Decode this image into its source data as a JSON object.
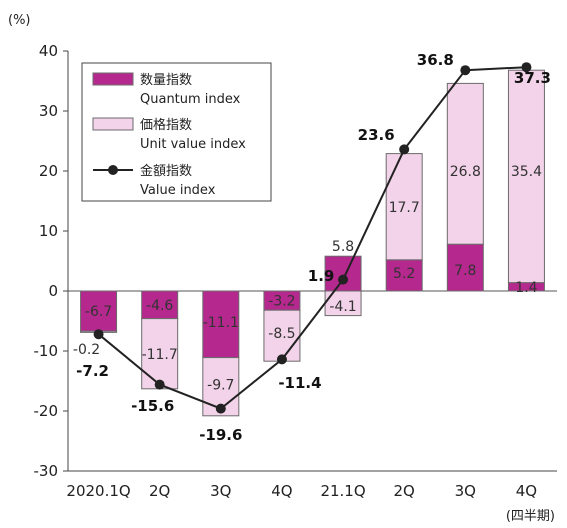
{
  "chart_data": {
    "type": "bar",
    "stacked": true,
    "y_unit": "(%)",
    "x_unit": "(四半期)",
    "categories": [
      "2020.1Q",
      "2Q",
      "3Q",
      "4Q",
      "21.1Q",
      "2Q",
      "3Q",
      "4Q"
    ],
    "ylim": [
      -30,
      40
    ],
    "yticks": [
      -30,
      -20,
      -10,
      0,
      10,
      20,
      30,
      40
    ],
    "grid": false,
    "legend_position": "top-left",
    "series": [
      {
        "name": "数量指数",
        "name_en": "Quantum index",
        "kind": "bar",
        "color": "#b5288e",
        "values": [
          -6.7,
          -4.6,
          -11.1,
          -3.2,
          5.8,
          5.2,
          7.8,
          1.4
        ],
        "labels": [
          "-6.7",
          "-4.6",
          "-11.1",
          "-3.2",
          "5.8",
          "5.2",
          "7.8",
          "1.4"
        ]
      },
      {
        "name": "価格指数",
        "name_en": "Unit value index",
        "kind": "bar",
        "color": "#f2d3e9",
        "values": [
          -0.2,
          -11.7,
          -9.7,
          -8.5,
          -4.1,
          17.7,
          26.8,
          35.4
        ],
        "labels": [
          "-0.2",
          "-11.7",
          "-9.7",
          "-8.5",
          "-4.1",
          "17.7",
          "26.8",
          "35.4"
        ]
      },
      {
        "name": "金額指数",
        "name_en": "Value index",
        "kind": "line",
        "color": "#222222",
        "values": [
          -7.2,
          -15.6,
          -19.6,
          -11.4,
          1.9,
          23.6,
          36.8,
          37.3
        ],
        "labels": [
          "-7.2",
          "-15.6",
          "-19.6",
          "-11.4",
          "1.9",
          "23.6",
          "36.8",
          "37.3"
        ]
      }
    ]
  }
}
